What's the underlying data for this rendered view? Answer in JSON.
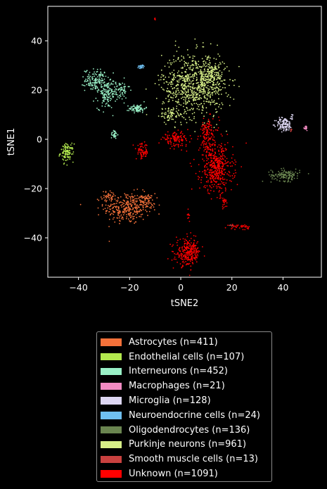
{
  "chart_data": {
    "type": "scatter",
    "title": "",
    "xlabel": "tSNE2",
    "ylabel": "tSNE1",
    "xlim": [
      -52,
      55
    ],
    "ylim": [
      -56,
      54
    ],
    "xticks": [
      -40,
      -20,
      0,
      20,
      40
    ],
    "yticks": [
      -40,
      -20,
      0,
      20,
      40
    ],
    "xtick_labels": [
      "−40",
      "−20",
      "0",
      "20",
      "40"
    ],
    "ytick_labels": [
      "−40",
      "−20",
      "0",
      "20",
      "40"
    ],
    "grid": false,
    "legend_position": "below",
    "series": [
      {
        "name": "Astrocytes (n=411)",
        "color": "#f4713a",
        "count": 411,
        "clusters": [
          {
            "cx": -21,
            "cy": -28,
            "sx": 4.5,
            "sy": 3.2,
            "n": 300
          },
          {
            "cx": -28,
            "cy": -23,
            "sx": 1.5,
            "sy": 1.0,
            "n": 40
          },
          {
            "cx": -14,
            "cy": -25,
            "sx": 2.0,
            "sy": 1.5,
            "n": 71
          }
        ]
      },
      {
        "name": "Endothelial cells (n=107)",
        "color": "#b2e84e",
        "count": 107,
        "clusters": [
          {
            "cx": -44.5,
            "cy": -5.5,
            "sx": 1.3,
            "sy": 1.8,
            "n": 107
          }
        ]
      },
      {
        "name": "Interneurons (n=452)",
        "color": "#99f0c6",
        "count": 452,
        "clusters": [
          {
            "cx": -33,
            "cy": 24,
            "sx": 2.2,
            "sy": 2.2,
            "n": 150
          },
          {
            "cx": -29,
            "cy": 18,
            "sx": 1.8,
            "sy": 2.8,
            "n": 120
          },
          {
            "cx": -24,
            "cy": 20,
            "sx": 2.0,
            "sy": 2.0,
            "n": 70
          },
          {
            "cx": -17,
            "cy": 12.5,
            "sx": 1.6,
            "sy": 0.8,
            "n": 80
          },
          {
            "cx": -26,
            "cy": 2,
            "sx": 0.6,
            "sy": 0.9,
            "n": 32
          }
        ]
      },
      {
        "name": "Macrophages (n=21)",
        "color": "#f28bc2",
        "count": 21,
        "clusters": [
          {
            "cx": 49,
            "cy": 4.5,
            "sx": 0.25,
            "sy": 0.5,
            "n": 21
          }
        ]
      },
      {
        "name": "Microglia (n=128)",
        "color": "#ddd6f2",
        "count": 128,
        "clusters": [
          {
            "cx": 40.5,
            "cy": 6,
            "sx": 1.6,
            "sy": 1.4,
            "n": 118
          },
          {
            "cx": 43.5,
            "cy": 9,
            "sx": 0.4,
            "sy": 0.8,
            "n": 10
          }
        ]
      },
      {
        "name": "Neuroendocrine cells (n=24)",
        "color": "#6fbff0",
        "count": 24,
        "clusters": [
          {
            "cx": -15.5,
            "cy": 29.5,
            "sx": 0.7,
            "sy": 0.4,
            "n": 24
          }
        ]
      },
      {
        "name": "Oligodendrocytes (n=136)",
        "color": "#6a8550",
        "count": 136,
        "clusters": [
          {
            "cx": 41,
            "cy": -14.5,
            "sx": 2.8,
            "sy": 1.2,
            "n": 136
          }
        ]
      },
      {
        "name": "Purkinje neurons (n=961)",
        "color": "#d7ef88",
        "count": 961,
        "clusters": [
          {
            "cx": 5,
            "cy": 22,
            "sx": 6.2,
            "sy": 6.5,
            "n": 750
          },
          {
            "cx": 12,
            "cy": 26,
            "sx": 2.5,
            "sy": 3.0,
            "n": 150
          },
          {
            "cx": -4,
            "cy": 10,
            "sx": 2.0,
            "sy": 1.5,
            "n": 61
          }
        ]
      },
      {
        "name": "Smooth muscle cells (n=13)",
        "color": "#c9413f",
        "count": 13,
        "clusters": [
          {
            "cx": 20,
            "cy": -35,
            "sx": 0.6,
            "sy": 0.3,
            "n": 7
          },
          {
            "cx": 43,
            "cy": 3.5,
            "sx": 0.4,
            "sy": 0.4,
            "n": 6
          }
        ]
      },
      {
        "name": "Unknown (n=1091)",
        "color": "#ff0000",
        "count": 1091,
        "clusters": [
          {
            "cx": 14,
            "cy": -12,
            "sx": 3.2,
            "sy": 4.8,
            "n": 420
          },
          {
            "cx": 11,
            "cy": 0,
            "sx": 2.0,
            "sy": 4.0,
            "n": 110
          },
          {
            "cx": -2,
            "cy": 0,
            "sx": 2.6,
            "sy": 1.4,
            "n": 120
          },
          {
            "cx": -15,
            "cy": -5,
            "sx": 1.2,
            "sy": 1.6,
            "n": 70
          },
          {
            "cx": 3,
            "cy": -46,
            "sx": 2.4,
            "sy": 2.7,
            "n": 260
          },
          {
            "cx": 10,
            "cy": 4,
            "sx": 1.2,
            "sy": 1.5,
            "n": 40
          },
          {
            "cx": 23,
            "cy": -35.5,
            "sx": 2.0,
            "sy": 0.5,
            "n": 35
          },
          {
            "cx": 3,
            "cy": -30.5,
            "sx": 0.4,
            "sy": 0.8,
            "n": 10
          },
          {
            "cx": -10,
            "cy": 49,
            "sx": 0.2,
            "sy": 0.2,
            "n": 5
          },
          {
            "cx": 17,
            "cy": -26,
            "sx": 0.6,
            "sy": 1.5,
            "n": 21
          }
        ]
      }
    ]
  }
}
